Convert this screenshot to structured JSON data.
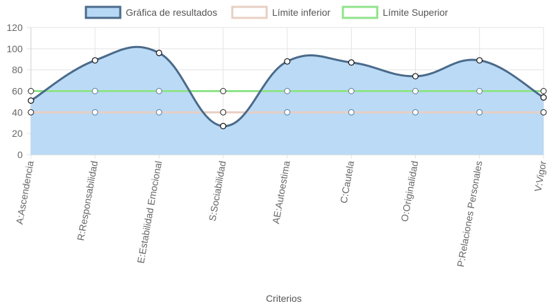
{
  "chart_data": {
    "type": "line",
    "xlabel": "Criterios",
    "ylabel": "",
    "ylim": [
      0,
      120
    ],
    "yticks": [
      0,
      20,
      40,
      60,
      80,
      100,
      120
    ],
    "grid": true,
    "legend_position": "top",
    "categories": [
      "A:Ascendencia",
      "R:Responsabilidad",
      "E:Estabilidad Emocional",
      "S:Sociabilidad",
      "AE:Autoestima",
      "C:Cautela",
      "O:Originalidad",
      "P:Relaciones Personales",
      "V:Vigor"
    ],
    "series": [
      {
        "name": "Gráfica de resultados",
        "values": [
          51,
          89,
          96,
          27,
          88,
          87,
          74,
          89,
          54
        ],
        "color": "#4a6a8a",
        "fill": "#b7d8f5",
        "filled": true,
        "smooth": true
      },
      {
        "name": "Límite inferior",
        "values": [
          40,
          40,
          40,
          40,
          40,
          40,
          40,
          40,
          40
        ],
        "color": "#e8cfc2",
        "filled": false
      },
      {
        "name": "Límite Superior",
        "values": [
          60,
          60,
          60,
          60,
          60,
          60,
          60,
          60,
          60
        ],
        "color": "#8fe38a",
        "filled": false
      }
    ]
  }
}
